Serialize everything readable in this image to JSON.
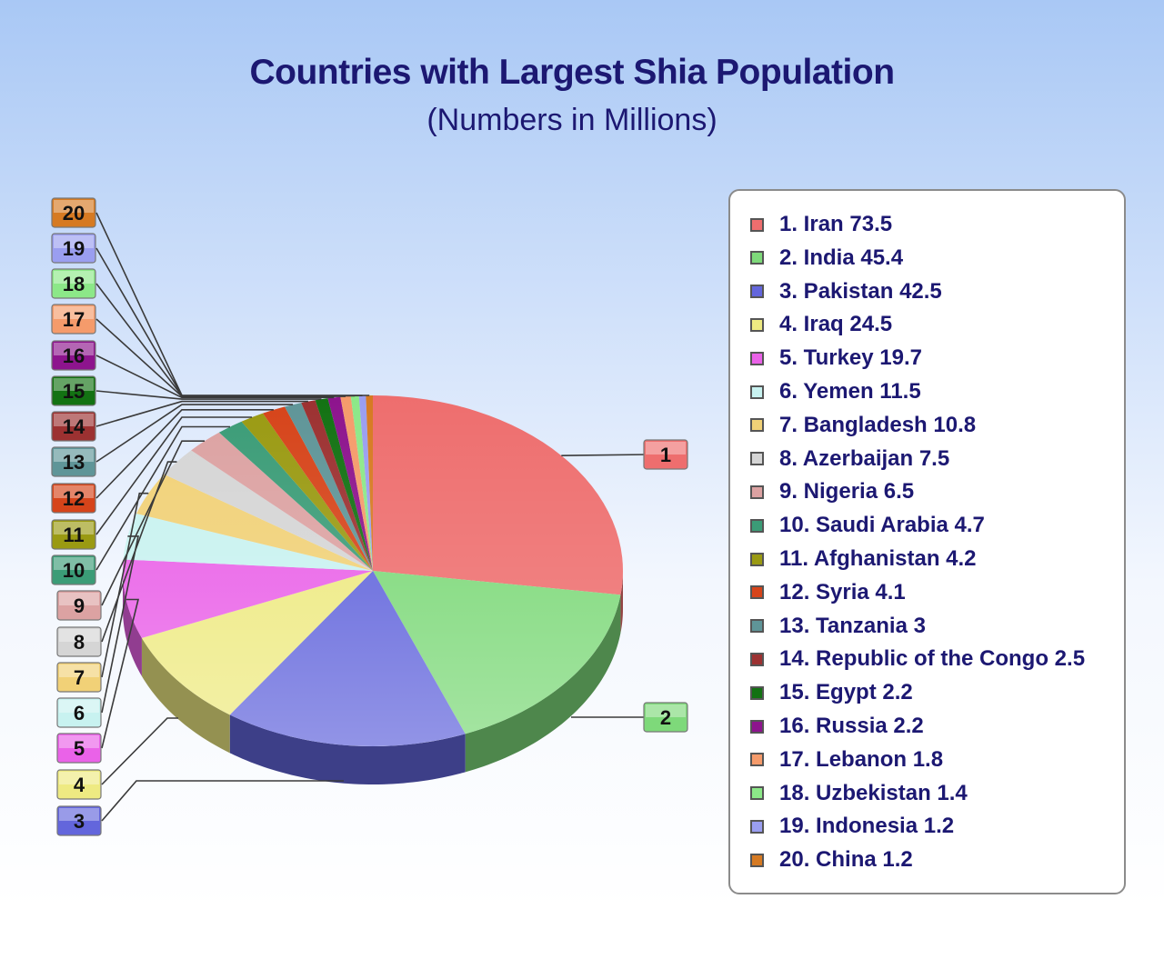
{
  "chart_data": {
    "type": "pie",
    "title": "Countries with Largest Shia Population",
    "subtitle": "(Numbers in Millions)",
    "labels": [
      "Iran",
      "India",
      "Pakistan",
      "Iraq",
      "Turkey",
      "Yemen",
      "Bangladesh",
      "Azerbaijan",
      "Nigeria",
      "Saudi Arabia",
      "Afghanistan",
      "Syria",
      "Tanzania",
      "Republic of the Congo",
      "Egypt",
      "Russia",
      "Lebanon",
      "Uzbekistan",
      "Indonesia",
      "China"
    ],
    "values": [
      73.5,
      45.4,
      42.5,
      24.5,
      19.7,
      11.5,
      10.8,
      7.5,
      6.5,
      4.7,
      4.2,
      4.1,
      3,
      2.5,
      2.2,
      2.2,
      1.8,
      1.4,
      1.2,
      1.2
    ],
    "colors": [
      "#ee6e6e",
      "#7ed97a",
      "#6366dc",
      "#eeea82",
      "#ea62e8",
      "#c8f2f0",
      "#f1d177",
      "#d5d5d5",
      "#dca2a2",
      "#3b9c77",
      "#9a9a12",
      "#d6441a",
      "#5f9598",
      "#9c3131",
      "#137213",
      "#8d148d",
      "#f59b6b",
      "#8ce888",
      "#9a9ef0",
      "#d67a22"
    ],
    "slice_tags": [
      "1",
      "2",
      "3",
      "4",
      "5",
      "6",
      "7",
      "8",
      "9",
      "10",
      "11",
      "12",
      "13",
      "14",
      "15",
      "16",
      "17",
      "18",
      "19",
      "20"
    ],
    "legend_placement": "right",
    "legend": [
      "1. Iran 73.5",
      "2. India 45.4",
      "3. Pakistan 42.5",
      "4. Iraq 24.5",
      "5. Turkey 19.7",
      "6. Yemen 11.5",
      "7. Bangladesh 10.8",
      "8. Azerbaijan 7.5",
      "9. Nigeria 6.5",
      "10. Saudi Arabia 4.7",
      "11. Afghanistan 4.2",
      "12. Syria 4.1",
      "13. Tanzania 3",
      "14. Republic of the Congo 2.5",
      "15. Egypt 2.2",
      "16. Russia 2.2",
      "17. Lebanon 1.8",
      "18. Uzbekistan 1.4",
      "19. Indonesia 1.2",
      "20. China 1.2"
    ]
  }
}
